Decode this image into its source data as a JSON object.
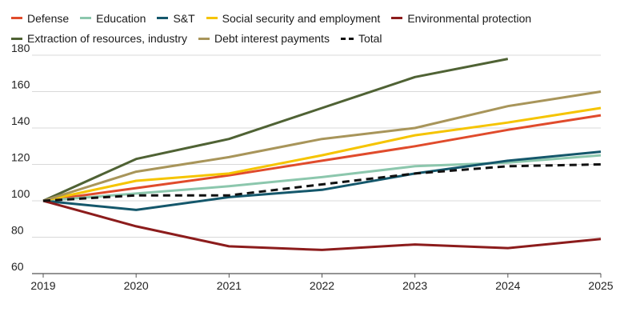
{
  "chart_data": {
    "type": "line",
    "title": "",
    "xlabel": "",
    "ylabel": "",
    "x": [
      2019,
      2020,
      2021,
      2022,
      2023,
      2024,
      2025
    ],
    "x_tick_labels": [
      "2019",
      "2020",
      "2021",
      "2022",
      "2023",
      "2024",
      "2025"
    ],
    "ylim": [
      60,
      180
    ],
    "y_ticks": [
      60,
      80,
      100,
      120,
      140,
      160,
      180
    ],
    "y_tick_labels": [
      "60",
      "80",
      "100",
      "120",
      "140",
      "160",
      "180"
    ],
    "grid": "horizontal",
    "legend_position": "top",
    "series": [
      {
        "name": "Defense",
        "color": "#e04b2c",
        "dashed": false,
        "values": [
          100,
          107,
          114,
          122,
          130,
          139,
          147
        ]
      },
      {
        "name": "Education",
        "color": "#8cc7ad",
        "dashed": false,
        "values": [
          100,
          104,
          108,
          113,
          119,
          121,
          125
        ]
      },
      {
        "name": "S&T",
        "color": "#14576b",
        "dashed": false,
        "values": [
          100,
          95,
          102,
          106,
          115,
          122,
          127
        ]
      },
      {
        "name": "Social security and employment",
        "color": "#f5c400",
        "dashed": false,
        "values": [
          100,
          111,
          115,
          125,
          136,
          143,
          151
        ]
      },
      {
        "name": "Environmental protection",
        "color": "#8c1c1c",
        "dashed": false,
        "values": [
          100,
          86,
          75,
          73,
          76,
          74,
          79
        ]
      },
      {
        "name": "Extraction of resources, industry",
        "color": "#4f6234",
        "dashed": false,
        "values": [
          100,
          123,
          134,
          151,
          168,
          178,
          null
        ]
      },
      {
        "name": "Debt interest payments",
        "color": "#a8955a",
        "dashed": false,
        "values": [
          100,
          116,
          124,
          134,
          140,
          152,
          160
        ]
      },
      {
        "name": "Total",
        "color": "#111111",
        "dashed": true,
        "values": [
          100,
          103,
          103,
          109,
          115,
          119,
          120
        ]
      }
    ]
  }
}
